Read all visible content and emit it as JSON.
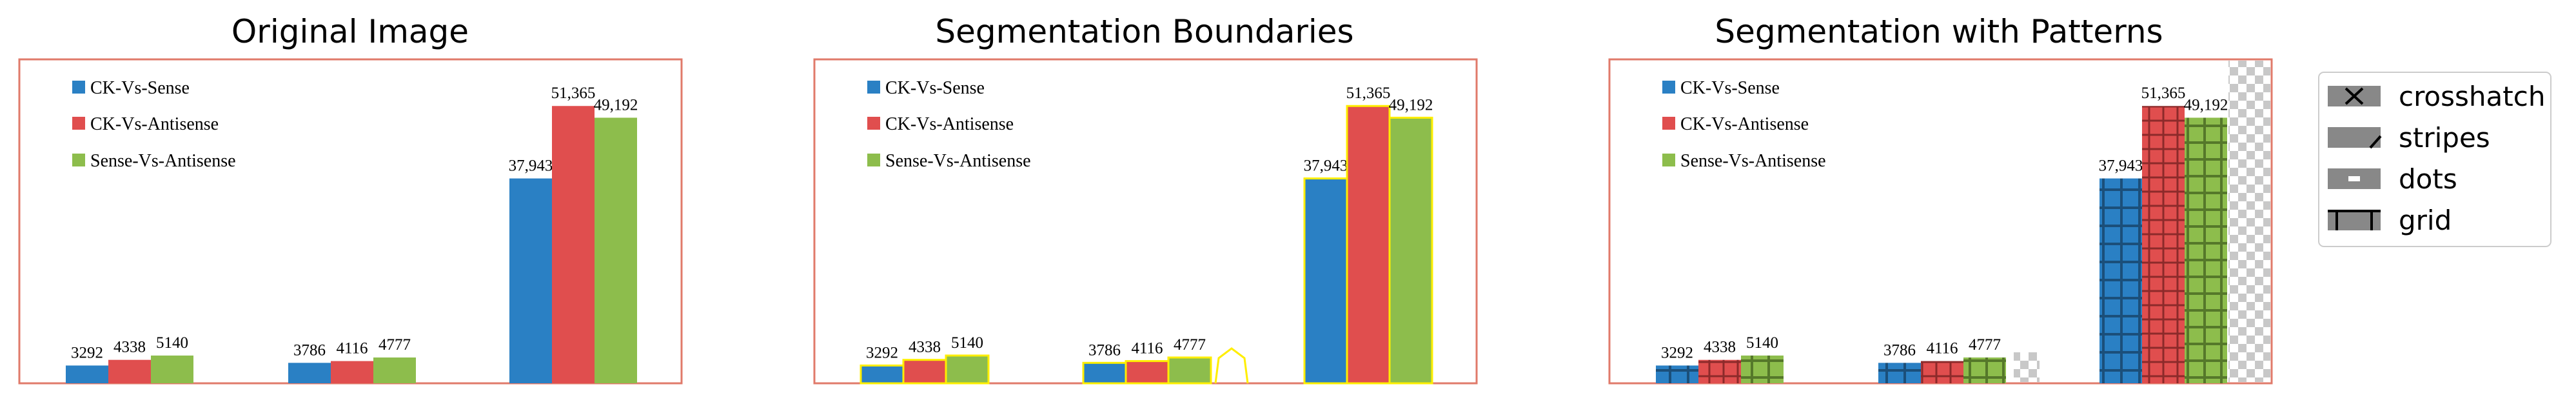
{
  "panel_titles": [
    "Original Image",
    "Segmentation Boundaries",
    "Segmentation with Patterns"
  ],
  "pattern_legend": [
    {
      "label": "crosshatch",
      "icon": "crosshatch-icon"
    },
    {
      "label": "stripes",
      "icon": "stripes-icon"
    },
    {
      "label": "dots",
      "icon": "dots-icon"
    },
    {
      "label": "grid",
      "icon": "grid-icon"
    }
  ],
  "colors": {
    "CK-Vs-Sense": "#2a80c4",
    "CK-Vs-Antisense": "#e04e4e",
    "Sense-Vs-Antisense": "#8dbd4c",
    "frame": "#e07a6a",
    "boundary": "#ffee00"
  },
  "chart_data": {
    "type": "bar",
    "categories": [
      "",
      "",
      ""
    ],
    "series": [
      {
        "name": "CK-Vs-Sense",
        "values": [
          3292,
          3786,
          37943
        ],
        "labels": [
          "3292",
          "3786",
          "37,943"
        ]
      },
      {
        "name": "CK-Vs-Antisense",
        "values": [
          4338,
          4116,
          51365
        ],
        "labels": [
          "4338",
          "4116",
          "51,365"
        ]
      },
      {
        "name": "Sense-Vs-Antisense",
        "values": [
          5140,
          4777,
          49192
        ],
        "labels": [
          "5140",
          "4777",
          "49,192"
        ]
      }
    ],
    "ylim": [
      0,
      60000
    ],
    "grid": false,
    "legend": "top-left"
  }
}
